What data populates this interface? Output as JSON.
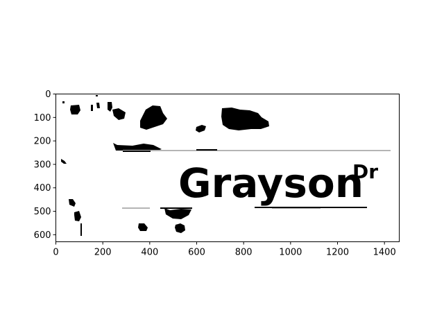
{
  "image": {
    "sign_text": "Grayson",
    "sign_suffix": "Dr"
  },
  "axes": {
    "x_ticks": [
      0,
      200,
      400,
      600,
      800,
      1000,
      1200,
      1400
    ],
    "y_ticks": [
      0,
      100,
      200,
      300,
      400,
      500,
      600
    ],
    "xlim": [
      0,
      1463
    ],
    "ylim": [
      630,
      0
    ]
  },
  "colors": {
    "ink": "#000000",
    "gray_line": "#b4b4b4",
    "background": "#ffffff"
  }
}
